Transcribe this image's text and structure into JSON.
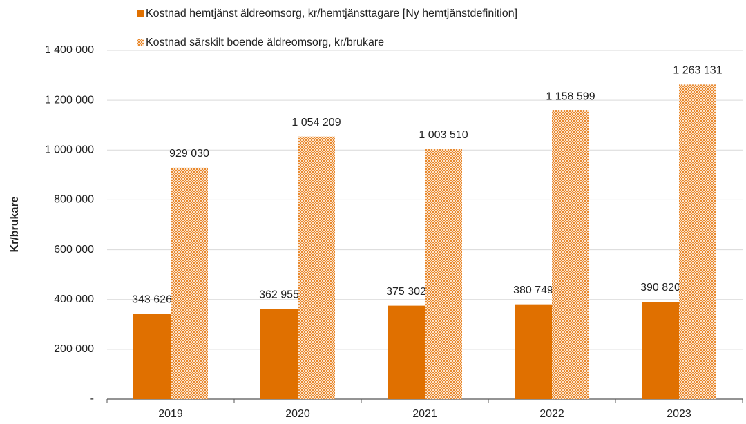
{
  "chart_data": {
    "type": "bar",
    "y_label": "Kr/brukare",
    "categories": [
      "2019",
      "2020",
      "2021",
      "2022",
      "2023"
    ],
    "series": [
      {
        "name": "Kostnad hemtjänst äldreomsorg, kr/hemtjänsttagare [Ny hemtjänstdefinition]",
        "color": "#e07000",
        "fill": "solid",
        "values": [
          343626,
          362955,
          375302,
          380749,
          390820
        ],
        "value_labels": [
          "343 626",
          "362 955",
          "375 302",
          "380 749",
          "390 820"
        ]
      },
      {
        "name": "Kostnad särskilt boende äldreomsorg, kr/brukare",
        "color": "#e8892e",
        "fill": "dotted",
        "values": [
          929030,
          1054209,
          1003510,
          1158599,
          1263131
        ],
        "value_labels": [
          "929 030",
          "1 054 209",
          "1 003 510",
          "1 158 599",
          "1 263 131"
        ]
      }
    ],
    "ylim": [
      0,
      1400000
    ],
    "yticks": [
      {
        "value": 0,
        "label": "-"
      },
      {
        "value": 200000,
        "label": "200 000"
      },
      {
        "value": 400000,
        "label": "400 000"
      },
      {
        "value": 600000,
        "label": "600 000"
      },
      {
        "value": 800000,
        "label": "800 000"
      },
      {
        "value": 1000000,
        "label": "1 000 000"
      },
      {
        "value": 1200000,
        "label": "1 200 000"
      },
      {
        "value": 1400000,
        "label": "1 400 000"
      }
    ],
    "grid": true
  }
}
